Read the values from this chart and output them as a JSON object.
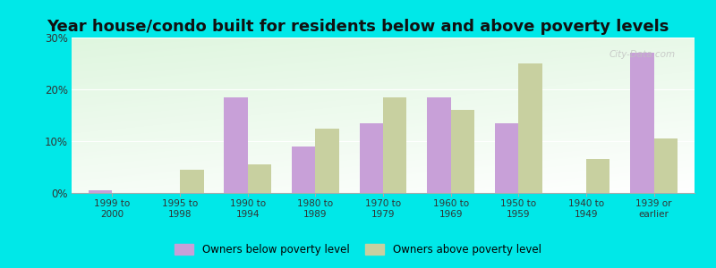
{
  "title": "Year house/condo built for residents below and above poverty levels",
  "categories": [
    "1999 to\n2000",
    "1995 to\n1998",
    "1990 to\n1994",
    "1980 to\n1989",
    "1970 to\n1979",
    "1960 to\n1969",
    "1950 to\n1959",
    "1940 to\n1949",
    "1939 or\nearlier"
  ],
  "below_poverty": [
    0.5,
    0.0,
    18.5,
    9.0,
    13.5,
    18.5,
    13.5,
    0.0,
    27.0
  ],
  "above_poverty": [
    0.0,
    4.5,
    5.5,
    12.5,
    18.5,
    16.0,
    25.0,
    6.5,
    10.5
  ],
  "below_color": "#c8a0d8",
  "above_color": "#c8d0a0",
  "outer_background": "#00e8e8",
  "ylim": [
    0,
    30
  ],
  "yticks": [
    0,
    10,
    20,
    30
  ],
  "ytick_labels": [
    "0%",
    "10%",
    "20%",
    "30%"
  ],
  "legend_below": "Owners below poverty level",
  "legend_above": "Owners above poverty level",
  "title_fontsize": 13,
  "bar_width": 0.35,
  "watermark": "City-Data.com"
}
